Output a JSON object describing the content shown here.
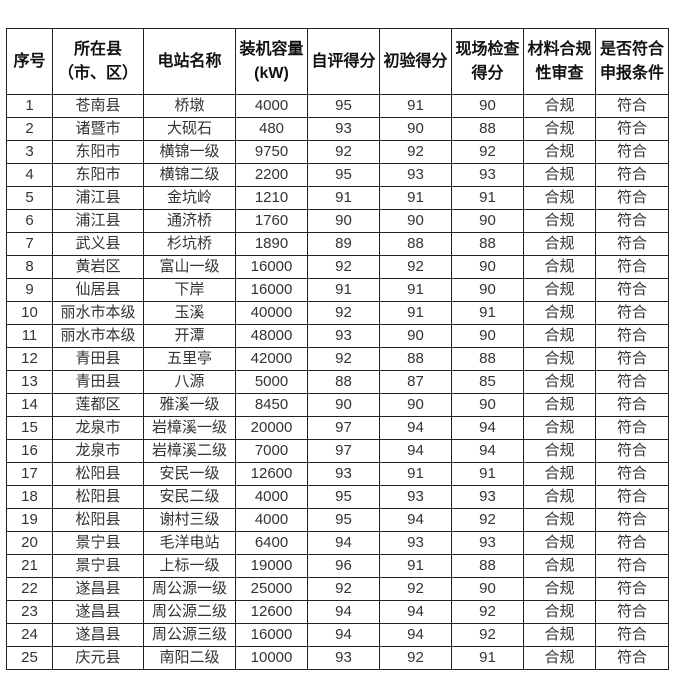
{
  "headers": [
    "序号",
    "所在县（市、区）",
    "电站名称",
    "装机容量(kW)",
    "自评得分",
    "初验得分",
    "现场检查得分",
    "材料合规性审查",
    "是否符合申报条件"
  ],
  "rows": [
    [
      "1",
      "苍南县",
      "桥墩",
      "4000",
      "95",
      "91",
      "90",
      "合规",
      "符合"
    ],
    [
      "2",
      "诸暨市",
      "大砚石",
      "480",
      "93",
      "90",
      "88",
      "合规",
      "符合"
    ],
    [
      "3",
      "东阳市",
      "横锦一级",
      "9750",
      "92",
      "92",
      "92",
      "合规",
      "符合"
    ],
    [
      "4",
      "东阳市",
      "横锦二级",
      "2200",
      "95",
      "93",
      "93",
      "合规",
      "符合"
    ],
    [
      "5",
      "浦江县",
      "金坑岭",
      "1210",
      "91",
      "91",
      "91",
      "合规",
      "符合"
    ],
    [
      "6",
      "浦江县",
      "通济桥",
      "1760",
      "90",
      "90",
      "90",
      "合规",
      "符合"
    ],
    [
      "7",
      "武义县",
      "杉坑桥",
      "1890",
      "89",
      "88",
      "88",
      "合规",
      "符合"
    ],
    [
      "8",
      "黄岩区",
      "富山一级",
      "16000",
      "92",
      "92",
      "90",
      "合规",
      "符合"
    ],
    [
      "9",
      "仙居县",
      "下岸",
      "16000",
      "91",
      "91",
      "90",
      "合规",
      "符合"
    ],
    [
      "10",
      "丽水市本级",
      "玉溪",
      "40000",
      "92",
      "91",
      "91",
      "合规",
      "符合"
    ],
    [
      "11",
      "丽水市本级",
      "开潭",
      "48000",
      "93",
      "90",
      "90",
      "合规",
      "符合"
    ],
    [
      "12",
      "青田县",
      "五里亭",
      "42000",
      "92",
      "88",
      "88",
      "合规",
      "符合"
    ],
    [
      "13",
      "青田县",
      "八源",
      "5000",
      "88",
      "87",
      "85",
      "合规",
      "符合"
    ],
    [
      "14",
      "莲都区",
      "雅溪一级",
      "8450",
      "90",
      "90",
      "90",
      "合规",
      "符合"
    ],
    [
      "15",
      "龙泉市",
      "岩樟溪一级",
      "20000",
      "97",
      "94",
      "94",
      "合规",
      "符合"
    ],
    [
      "16",
      "龙泉市",
      "岩樟溪二级",
      "7000",
      "97",
      "94",
      "94",
      "合规",
      "符合"
    ],
    [
      "17",
      "松阳县",
      "安民一级",
      "12600",
      "93",
      "91",
      "91",
      "合规",
      "符合"
    ],
    [
      "18",
      "松阳县",
      "安民二级",
      "4000",
      "95",
      "93",
      "93",
      "合规",
      "符合"
    ],
    [
      "19",
      "松阳县",
      "谢村三级",
      "4000",
      "95",
      "94",
      "92",
      "合规",
      "符合"
    ],
    [
      "20",
      "景宁县",
      "毛洋电站",
      "6400",
      "94",
      "93",
      "93",
      "合规",
      "符合"
    ],
    [
      "21",
      "景宁县",
      "上标一级",
      "19000",
      "96",
      "91",
      "88",
      "合规",
      "符合"
    ],
    [
      "22",
      "遂昌县",
      "周公源一级",
      "25000",
      "92",
      "92",
      "90",
      "合规",
      "符合"
    ],
    [
      "23",
      "遂昌县",
      "周公源二级",
      "12600",
      "94",
      "94",
      "92",
      "合规",
      "符合"
    ],
    [
      "24",
      "遂昌县",
      "周公源三级",
      "16000",
      "94",
      "94",
      "92",
      "合规",
      "符合"
    ],
    [
      "25",
      "庆元县",
      "南阳二级",
      "10000",
      "93",
      "92",
      "91",
      "合规",
      "符合"
    ]
  ]
}
